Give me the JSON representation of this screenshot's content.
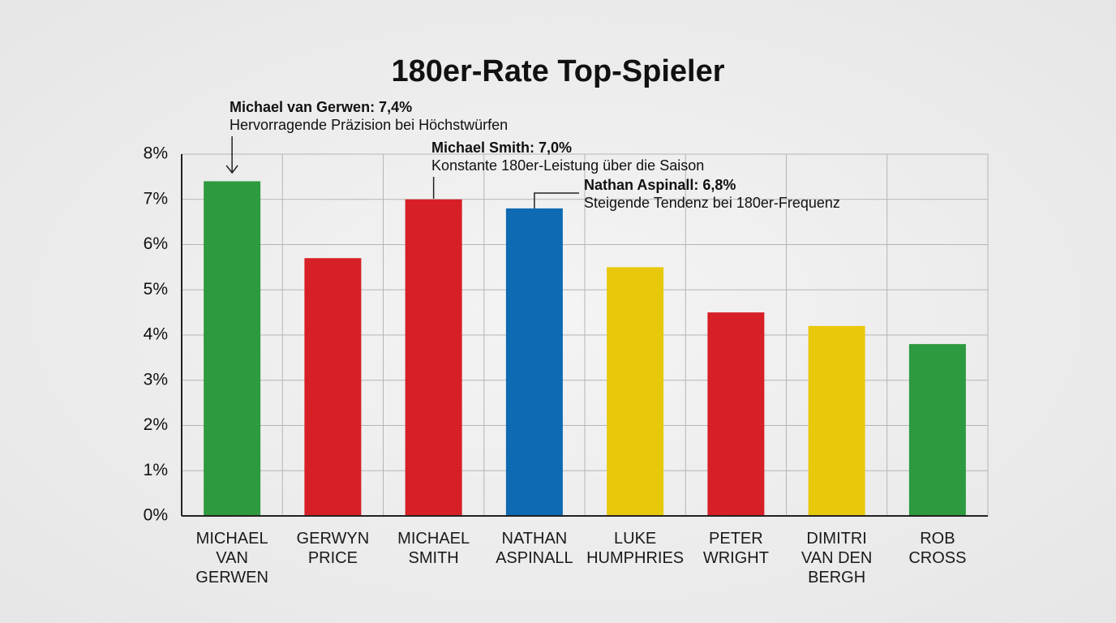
{
  "chart_data": {
    "type": "bar",
    "title": "180er-Rate Top-Spieler",
    "categories": [
      "MICHAEL\nVAN GERWEN",
      "GERWYN\nPRICE",
      "MICHAEL\nSMITH",
      "NATHAN\nASPINALL",
      "LUKE\nHUMPHRIES",
      "PETER\nWRIGHT",
      "DIMITRI\nVAN DEN\nBERGH",
      "ROB\nCROSS"
    ],
    "values": [
      7.4,
      5.7,
      7.0,
      6.8,
      5.5,
      4.5,
      4.2,
      3.8
    ],
    "colors": [
      "#2e9a3f",
      "#d71f26",
      "#d71f26",
      "#0d6ab3",
      "#e8c80a",
      "#d71f26",
      "#e8c80a",
      "#2e9a3f"
    ],
    "ylim": [
      0,
      8
    ],
    "yticks": [
      {
        "value": 0,
        "label": "0%"
      },
      {
        "value": 1,
        "label": "1%"
      },
      {
        "value": 2,
        "label": "2%"
      },
      {
        "value": 3,
        "label": "3%"
      },
      {
        "value": 4,
        "label": "4%"
      },
      {
        "value": 5,
        "label": "5%"
      },
      {
        "value": 6,
        "label": "6%"
      },
      {
        "value": 7,
        "label": "7%"
      },
      {
        "value": 8,
        "label": "8%"
      }
    ],
    "grid": true,
    "annotations": [
      {
        "label": "Michael van Gerwen: 7,4%",
        "text": "Hervorragende Präzision bei Höchstwürfen"
      },
      {
        "label": "Michael Smith: 7,0%",
        "text": "Konstante 180er-Leistung über die Saison"
      },
      {
        "label": "Nathan Aspinall: 6,8%",
        "text": "Steigende Tendenz bei 180er-Frequenz"
      }
    ]
  }
}
